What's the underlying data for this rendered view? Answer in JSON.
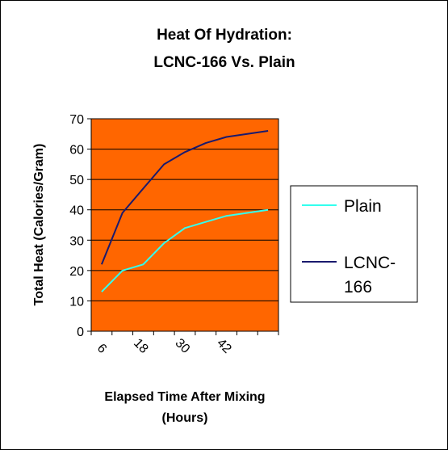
{
  "chart_data": {
    "type": "line",
    "title_lines": [
      "Heat Of Hydration:",
      "LCNC-166 Vs. Plain"
    ],
    "xlabel_lines": [
      "Elapsed Time After Mixing",
      "(Hours)"
    ],
    "ylabel": "Total Heat (Calories/Gram)",
    "x": [
      6,
      12,
      18,
      24,
      30,
      36,
      42,
      48,
      54
    ],
    "x_tick_labels": [
      "6",
      "18",
      "30",
      "42"
    ],
    "ylim": [
      0,
      70
    ],
    "y_ticks": [
      0,
      10,
      20,
      30,
      40,
      50,
      60,
      70
    ],
    "grid": true,
    "legend_position": "right",
    "plot_background": "#FF6600",
    "series": [
      {
        "name": "Plain",
        "color": "#33FFEE",
        "values": [
          13,
          20,
          22,
          29,
          34,
          36,
          38,
          null,
          40
        ]
      },
      {
        "name": "LCNC-166",
        "legend_lines": [
          "LCNC-",
          "166"
        ],
        "color": "#1A1A6E",
        "values": [
          22,
          39,
          47,
          55,
          59,
          62,
          64,
          null,
          66
        ]
      }
    ]
  }
}
